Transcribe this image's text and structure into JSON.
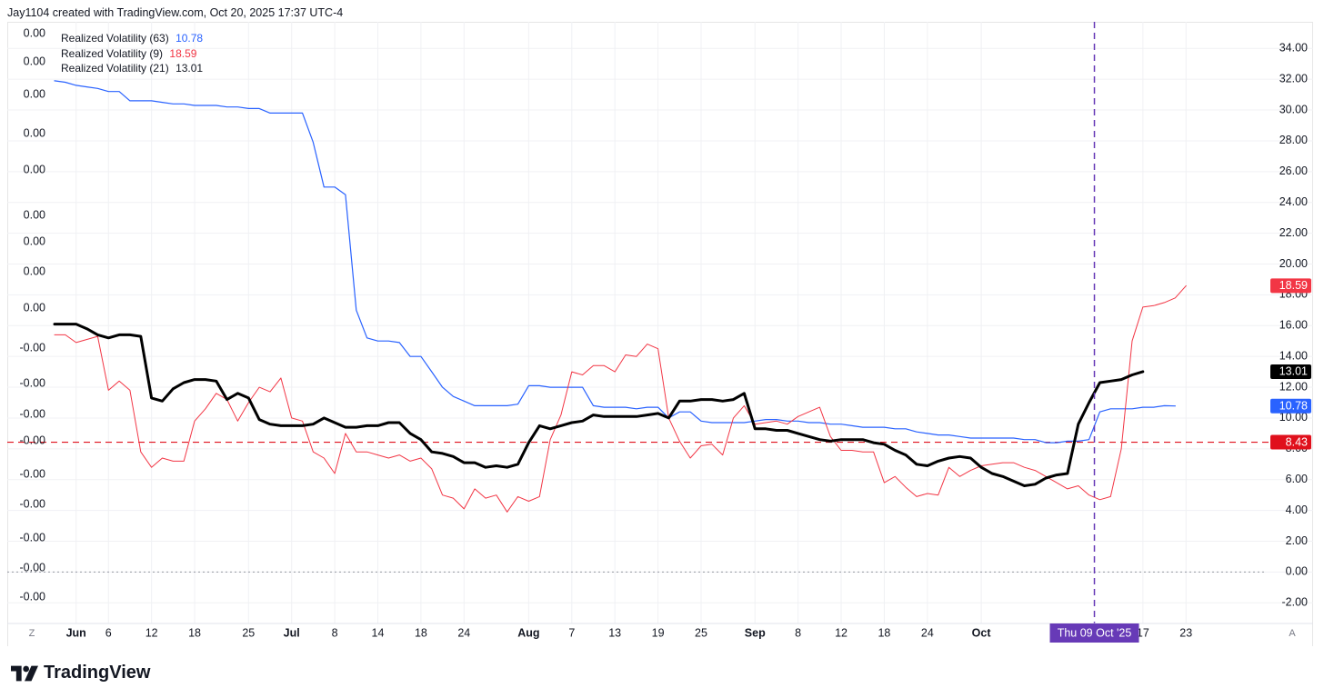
{
  "header": {
    "text": "Jay1104 created with TradingView.com, Oct 20, 2025 17:37 UTC-4"
  },
  "brand": {
    "name": "TradingView"
  },
  "chart_data": {
    "type": "line",
    "title": "",
    "series": [
      {
        "name": "Realized Volatility (63)",
        "legend_value": "10.78",
        "color": "#2962ff",
        "width": 1.2,
        "values": [
          31.9,
          31.8,
          31.6,
          31.5,
          31.4,
          31.2,
          31.2,
          30.6,
          30.6,
          30.6,
          30.5,
          30.4,
          30.4,
          30.3,
          30.3,
          30.3,
          30.2,
          30.2,
          30.1,
          30.1,
          29.8,
          29.8,
          29.8,
          29.8,
          27.9,
          25.0,
          25.0,
          24.5,
          17.0,
          15.2,
          15.0,
          15.0,
          14.9,
          14.0,
          14.0,
          13.0,
          12.0,
          11.4,
          11.1,
          10.8,
          10.8,
          10.8,
          10.8,
          10.9,
          12.1,
          12.1,
          12.0,
          12.0,
          12.0,
          12.0,
          10.8,
          10.7,
          10.7,
          10.7,
          10.6,
          10.7,
          10.7,
          10.0,
          10.4,
          10.4,
          9.8,
          9.7,
          9.7,
          9.7,
          9.7,
          9.8,
          9.9,
          9.9,
          9.8,
          9.8,
          9.7,
          9.7,
          9.6,
          9.6,
          9.5,
          9.4,
          9.4,
          9.4,
          9.3,
          9.3,
          9.1,
          9.0,
          8.9,
          8.9,
          8.8,
          8.7,
          8.7,
          8.7,
          8.7,
          8.7,
          8.6,
          8.6,
          8.4,
          8.4,
          8.5,
          8.5,
          8.6,
          10.4,
          10.6,
          10.6,
          10.6,
          10.7,
          10.7,
          10.8,
          10.78
        ]
      },
      {
        "name": "Realized Volatility (9)",
        "legend_value": "18.59",
        "color": "#f23645",
        "width": 1.0,
        "values": [
          15.4,
          15.4,
          14.9,
          15.1,
          15.3,
          11.8,
          12.4,
          11.8,
          7.8,
          6.8,
          7.4,
          7.2,
          7.2,
          9.8,
          10.6,
          11.6,
          11.2,
          9.8,
          11.0,
          12.0,
          11.7,
          12.6,
          10.0,
          9.8,
          7.8,
          7.4,
          6.4,
          9.0,
          7.8,
          7.8,
          7.6,
          7.4,
          7.6,
          7.2,
          7.4,
          6.7,
          5.0,
          4.8,
          4.1,
          5.4,
          4.8,
          5.0,
          3.9,
          4.9,
          4.6,
          4.9,
          8.6,
          10.2,
          13.0,
          12.8,
          13.4,
          13.4,
          13.0,
          14.1,
          14.0,
          14.8,
          14.5,
          10.0,
          8.5,
          7.4,
          8.2,
          8.3,
          7.6,
          10.0,
          10.8,
          9.6,
          9.7,
          9.8,
          9.6,
          10.1,
          10.4,
          10.7,
          8.8,
          7.9,
          7.9,
          7.8,
          7.8,
          5.8,
          6.2,
          5.5,
          4.9,
          5.1,
          5.0,
          6.8,
          6.2,
          6.6,
          6.9,
          7.0,
          7.1,
          7.1,
          6.8,
          6.6,
          6.2,
          5.8,
          5.4,
          5.6,
          5.0,
          4.7,
          4.9,
          8.0,
          15.0,
          17.2,
          17.3,
          17.5,
          17.8,
          18.59
        ]
      },
      {
        "name": "Realized Volatility (21)",
        "legend_value": "13.01",
        "color": "#000000",
        "width": 3.0,
        "values": [
          16.1,
          16.1,
          16.1,
          15.8,
          15.4,
          15.2,
          15.4,
          15.4,
          15.3,
          11.3,
          11.1,
          11.9,
          12.3,
          12.5,
          12.5,
          12.4,
          11.2,
          11.6,
          11.3,
          9.9,
          9.6,
          9.5,
          9.5,
          9.5,
          9.6,
          10.0,
          9.7,
          9.4,
          9.4,
          9.5,
          9.5,
          9.7,
          9.7,
          9.0,
          8.6,
          7.8,
          7.7,
          7.5,
          7.1,
          7.1,
          6.8,
          6.9,
          6.8,
          7.0,
          8.4,
          9.5,
          9.3,
          9.5,
          9.7,
          9.8,
          10.2,
          10.1,
          10.1,
          10.1,
          10.1,
          10.2,
          10.3,
          10.0,
          11.1,
          11.1,
          11.2,
          11.2,
          11.1,
          11.2,
          11.6,
          9.3,
          9.3,
          9.2,
          9.2,
          9.0,
          8.8,
          8.6,
          8.5,
          8.6,
          8.6,
          8.6,
          8.4,
          8.3,
          7.9,
          7.6,
          7.0,
          6.9,
          7.2,
          7.4,
          7.5,
          7.4,
          6.8,
          6.4,
          6.2,
          5.9,
          5.6,
          5.7,
          6.1,
          6.3,
          6.4,
          9.6,
          11.0,
          12.3,
          12.4,
          12.5,
          12.8,
          13.01
        ]
      }
    ],
    "right_axis_ticks": [
      "34.00",
      "32.00",
      "30.00",
      "28.00",
      "26.00",
      "24.00",
      "22.00",
      "20.00",
      "18.00",
      "16.00",
      "14.00",
      "12.00",
      "10.00",
      "8.00",
      "6.00",
      "4.00",
      "2.00",
      "0.00",
      "-2.00"
    ],
    "left_axis_ticks": [
      "0.00",
      "0.00",
      "0.00",
      "0.00",
      "0.00",
      "0.00",
      "0.00",
      "0.00",
      "0.00",
      "-0.00",
      "-0.00",
      "-0.00",
      "-0.00",
      "-0.00",
      "-0.00",
      "-0.00",
      "-0.00",
      "-0.00"
    ],
    "x_axis_labels": [
      {
        "text": "Jun",
        "bold": true,
        "i": 2
      },
      {
        "text": "6",
        "bold": false,
        "i": 5
      },
      {
        "text": "12",
        "bold": false,
        "i": 9
      },
      {
        "text": "18",
        "bold": false,
        "i": 13
      },
      {
        "text": "25",
        "bold": false,
        "i": 18
      },
      {
        "text": "Jul",
        "bold": true,
        "i": 22
      },
      {
        "text": "8",
        "bold": false,
        "i": 26
      },
      {
        "text": "14",
        "bold": false,
        "i": 30
      },
      {
        "text": "18",
        "bold": false,
        "i": 34
      },
      {
        "text": "24",
        "bold": false,
        "i": 38
      },
      {
        "text": "Aug",
        "bold": true,
        "i": 44
      },
      {
        "text": "7",
        "bold": false,
        "i": 48
      },
      {
        "text": "13",
        "bold": false,
        "i": 52
      },
      {
        "text": "19",
        "bold": false,
        "i": 56
      },
      {
        "text": "25",
        "bold": false,
        "i": 60
      },
      {
        "text": "Sep",
        "bold": true,
        "i": 65
      },
      {
        "text": "8",
        "bold": false,
        "i": 69
      },
      {
        "text": "12",
        "bold": false,
        "i": 73
      },
      {
        "text": "18",
        "bold": false,
        "i": 77
      },
      {
        "text": "24",
        "bold": false,
        "i": 81
      },
      {
        "text": "Oct",
        "bold": true,
        "i": 86
      },
      {
        "text": "17",
        "bold": false,
        "i": 101
      },
      {
        "text": "23",
        "bold": false,
        "i": 105
      }
    ],
    "x_corner_left": "Z",
    "x_corner_right": "A",
    "crosshair": {
      "label": "Thu 09 Oct '25",
      "index": 96.5,
      "color": "#673ab7"
    },
    "horizontal_line": {
      "value": 8.43,
      "label": "8.43",
      "color": "#e0101c"
    },
    "zero_line": {
      "value": 0.0
    },
    "last_value_badges": [
      {
        "value": 18.59,
        "label": "18.59",
        "color": "#f23645"
      },
      {
        "value": 13.01,
        "label": "13.01",
        "color": "#000000"
      },
      {
        "value": 10.78,
        "label": "10.78",
        "color": "#2962ff"
      }
    ],
    "y_range": [
      -2.0,
      34.0
    ],
    "grid": true,
    "legend_position": "top-left"
  }
}
